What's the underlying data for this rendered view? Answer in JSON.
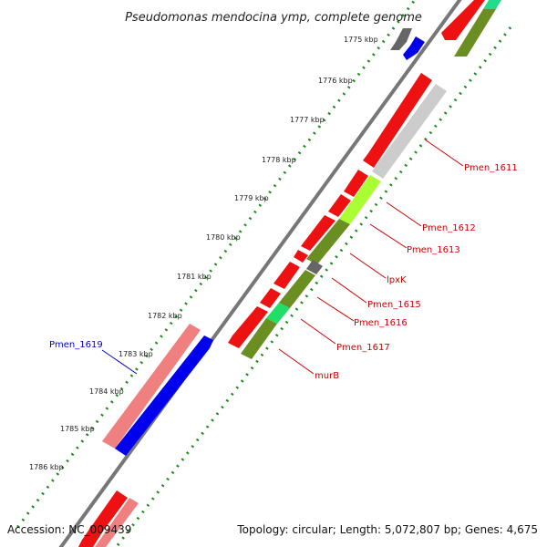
{
  "title": "Pseudomonas mendocina ymp, complete genome",
  "footer": {
    "accession": "Accession: NC_009439",
    "summary": "Topology: circular; Length: 5,072,807 bp; Genes: 4,675"
  },
  "colors": {
    "backbone": "#777777",
    "tick": "#1a8a1a",
    "forward_label": "#cc0000",
    "reverse_label": "#0000cc"
  },
  "kbp_labels": [
    "1775 kbp",
    "1776 kbp",
    "1777 kbp",
    "1778 kbp",
    "1779 kbp",
    "1780 kbp",
    "1781 kbp",
    "1782 kbp",
    "1783 kbp",
    "1784 kbp",
    "1785 kbp",
    "1786 kbp"
  ],
  "gene_labels": [
    {
      "text": "Pmen_1611",
      "strand": "forward"
    },
    {
      "text": "Pmen_1612",
      "strand": "forward"
    },
    {
      "text": "Pmen_1613",
      "strand": "forward"
    },
    {
      "text": "lpxK",
      "strand": "forward"
    },
    {
      "text": "Pmen_1615",
      "strand": "forward"
    },
    {
      "text": "Pmen_1616",
      "strand": "forward"
    },
    {
      "text": "Pmen_1617",
      "strand": "forward"
    },
    {
      "text": "murB",
      "strand": "forward"
    },
    {
      "text": "Pmen_1619",
      "strand": "reverse"
    }
  ]
}
